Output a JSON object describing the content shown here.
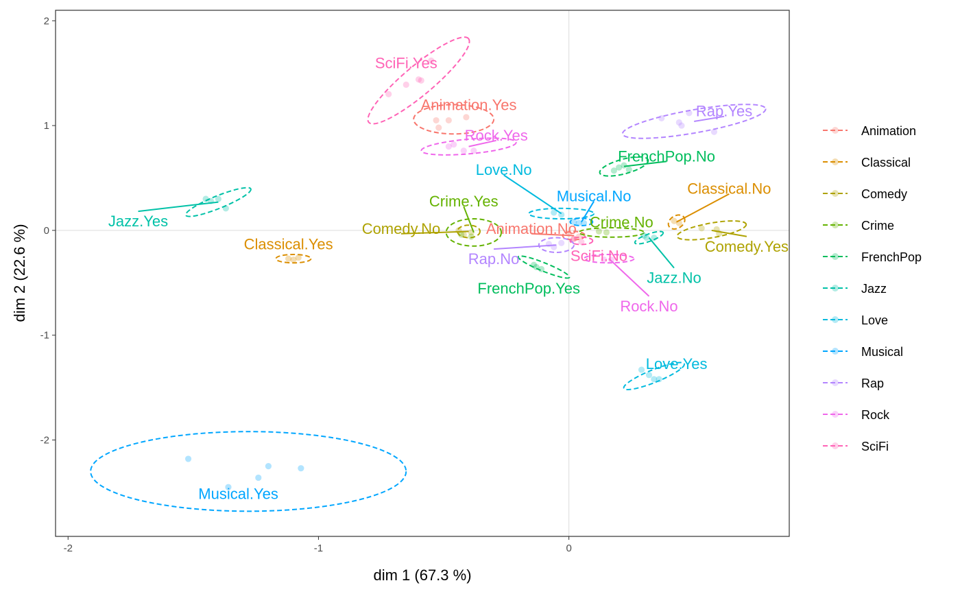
{
  "chart_data": {
    "type": "scatter",
    "xlabel": "dim 1 (67.3 %)",
    "ylabel": "dim 2 (22.6 %)",
    "xlim": [
      -2.05,
      0.88
    ],
    "ylim": [
      -2.92,
      2.1
    ],
    "x_ticks": [
      -2,
      -1,
      0
    ],
    "y_ticks": [
      2,
      1,
      0,
      -1,
      -2
    ],
    "x_tick_labels": [
      "-2",
      "-1",
      "0"
    ],
    "y_tick_labels": [
      "2",
      "1",
      "0",
      "-1",
      "-2"
    ],
    "grid": "reference lines at 0",
    "legend_position": "right",
    "series": [
      {
        "name": "Animation",
        "color": "#F8766D",
        "categories": [
          {
            "label": "Animation.Yes",
            "label_pos": [
              -0.4,
              1.2
            ],
            "points": [
              [
                -0.53,
                1.05
              ],
              [
                -0.52,
                0.98
              ],
              [
                -0.48,
                1.05
              ],
              [
                -0.41,
                1.08
              ]
            ],
            "ellipse": {
              "cx": -0.46,
              "cy": 1.06,
              "rx": 0.16,
              "ry": 0.14,
              "angle": 0
            }
          },
          {
            "label": "Animation.No",
            "label_pos": [
              -0.15,
              0.02
            ],
            "points": [
              [
                0.0,
                -0.03
              ],
              [
                0.02,
                -0.08
              ],
              [
                0.04,
                -0.06
              ]
            ],
            "ellipse": {
              "cx": 0.02,
              "cy": -0.05,
              "rx": 0.045,
              "ry": 0.04,
              "angle": 0
            }
          }
        ]
      },
      {
        "name": "Classical",
        "color": "#DB8E00",
        "categories": [
          {
            "label": "Classical.Yes",
            "label_pos": [
              -1.12,
              -0.13
            ],
            "points": [
              [
                -1.12,
                -0.27
              ],
              [
                -1.1,
                -0.28
              ],
              [
                -1.08,
                -0.26
              ]
            ],
            "ellipse": {
              "cx": -1.1,
              "cy": -0.27,
              "rx": 0.07,
              "ry": 0.04,
              "angle": 0
            }
          },
          {
            "label": "Classical.No",
            "label_pos": [
              0.64,
              0.4
            ],
            "points": [
              [
                0.42,
                0.09
              ],
              [
                0.44,
                0.07
              ]
            ],
            "ellipse": {
              "cx": 0.43,
              "cy": 0.08,
              "rx": 0.035,
              "ry": 0.06,
              "angle": -30
            }
          }
        ]
      },
      {
        "name": "Comedy",
        "color": "#AEA200",
        "categories": [
          {
            "label": "Comedy.No",
            "label_pos": [
              -0.67,
              0.02
            ],
            "points": [
              [
                -0.44,
                0.0
              ],
              [
                -0.42,
                -0.04
              ],
              [
                -0.39,
                -0.02
              ]
            ],
            "ellipse": {
              "cx": -0.4,
              "cy": -0.01,
              "rx": 0.045,
              "ry": 0.06,
              "angle": 0
            }
          },
          {
            "label": "Comedy.Yes",
            "label_pos": [
              0.71,
              -0.15
            ],
            "points": [
              [
                0.53,
                0.02
              ],
              [
                0.59,
                0.01
              ],
              [
                0.6,
                -0.03
              ]
            ],
            "ellipse": {
              "cx": 0.57,
              "cy": 0.0,
              "rx": 0.14,
              "ry": 0.07,
              "angle": -10
            }
          }
        ]
      },
      {
        "name": "Crime",
        "color": "#64B200",
        "categories": [
          {
            "label": "Crime.Yes",
            "label_pos": [
              -0.42,
              0.28
            ],
            "points": [
              [
                -0.43,
                -0.04
              ],
              [
                -0.39,
                -0.06
              ]
            ],
            "ellipse": {
              "cx": -0.38,
              "cy": -0.02,
              "rx": 0.11,
              "ry": 0.13,
              "angle": 0
            }
          },
          {
            "label": "Crime.No",
            "label_pos": [
              0.21,
              0.08
            ],
            "points": [
              [
                0.12,
                -0.01
              ],
              [
                0.15,
                -0.02
              ]
            ],
            "ellipse": {
              "cx": 0.17,
              "cy": -0.02,
              "rx": 0.13,
              "ry": 0.045,
              "angle": 0
            }
          }
        ]
      },
      {
        "name": "FrenchPop",
        "color": "#00BD5C",
        "categories": [
          {
            "label": "FrenchPop.Yes",
            "label_pos": [
              -0.16,
              -0.55
            ],
            "points": [
              [
                -0.14,
                -0.33
              ],
              [
                -0.13,
                -0.35
              ],
              [
                -0.11,
                -0.37
              ]
            ],
            "ellipse": {
              "cx": -0.1,
              "cy": -0.35,
              "rx": 0.11,
              "ry": 0.04,
              "angle": 22
            }
          },
          {
            "label": "FrenchPop.No",
            "label_pos": [
              0.39,
              0.71
            ],
            "points": [
              [
                0.18,
                0.57
              ],
              [
                0.2,
                0.6
              ],
              [
                0.22,
                0.62
              ],
              [
                0.24,
                0.58
              ]
            ],
            "ellipse": {
              "cx": 0.22,
              "cy": 0.61,
              "rx": 0.1,
              "ry": 0.07,
              "angle": -15
            }
          }
        ]
      },
      {
        "name": "Jazz",
        "color": "#00C1A7",
        "categories": [
          {
            "label": "Jazz.Yes",
            "label_pos": [
              -1.72,
              0.09
            ],
            "points": [
              [
                -1.45,
                0.3
              ],
              [
                -1.43,
                0.28
              ],
              [
                -1.4,
                0.3
              ],
              [
                -1.37,
                0.21
              ]
            ],
            "ellipse": {
              "cx": -1.4,
              "cy": 0.27,
              "rx": 0.14,
              "ry": 0.06,
              "angle": -22
            }
          },
          {
            "label": "Jazz.No",
            "label_pos": [
              0.42,
              -0.45
            ],
            "points": [
              [
                0.3,
                -0.05
              ],
              [
                0.31,
                -0.07
              ],
              [
                0.34,
                -0.07
              ]
            ],
            "ellipse": {
              "cx": 0.32,
              "cy": -0.07,
              "rx": 0.06,
              "ry": 0.035,
              "angle": -20
            }
          }
        ]
      },
      {
        "name": "Love",
        "color": "#00BADE",
        "categories": [
          {
            "label": "Love.Yes",
            "label_pos": [
              0.43,
              -1.27
            ],
            "points": [
              [
                0.29,
                -1.33
              ],
              [
                0.32,
                -1.38
              ],
              [
                0.34,
                -1.42
              ],
              [
                0.36,
                -1.42
              ]
            ],
            "ellipse": {
              "cx": 0.34,
              "cy": -1.39,
              "rx": 0.13,
              "ry": 0.06,
              "angle": -22
            }
          },
          {
            "label": "Love.No",
            "label_pos": [
              -0.26,
              0.58
            ],
            "points": [
              [
                -0.06,
                0.17
              ],
              [
                -0.03,
                0.15
              ]
            ],
            "ellipse": {
              "cx": -0.03,
              "cy": 0.16,
              "rx": 0.13,
              "ry": 0.05,
              "angle": 0
            }
          }
        ]
      },
      {
        "name": "Musical",
        "color": "#00A6FF",
        "categories": [
          {
            "label": "Musical.Yes",
            "label_pos": [
              -1.32,
              -2.51
            ],
            "points": [
              [
                -1.52,
                -2.18
              ],
              [
                -1.36,
                -2.45
              ],
              [
                -1.24,
                -2.36
              ],
              [
                -1.2,
                -2.25
              ],
              [
                -1.07,
                -2.27
              ]
            ],
            "ellipse": {
              "cx": -1.28,
              "cy": -2.3,
              "rx": 0.63,
              "ry": 0.38,
              "angle": 0
            }
          },
          {
            "label": "Musical.No",
            "label_pos": [
              0.1,
              0.33
            ],
            "points": [
              [
                0.02,
                0.08
              ],
              [
                0.04,
                0.07
              ],
              [
                0.06,
                0.07
              ]
            ],
            "ellipse": {
              "cx": 0.05,
              "cy": 0.08,
              "rx": 0.045,
              "ry": 0.035,
              "angle": 0
            }
          }
        ]
      },
      {
        "name": "Rap",
        "color": "#B385FF",
        "categories": [
          {
            "label": "Rap.Yes",
            "label_pos": [
              0.62,
              1.14
            ],
            "points": [
              [
                0.37,
                1.07
              ],
              [
                0.44,
                1.03
              ],
              [
                0.45,
                1.0
              ],
              [
                0.48,
                1.12
              ],
              [
                0.58,
                0.94
              ]
            ],
            "ellipse": {
              "cx": 0.5,
              "cy": 1.04,
              "rx": 0.29,
              "ry": 0.11,
              "angle": -10
            }
          },
          {
            "label": "Rap.No",
            "label_pos": [
              -0.3,
              -0.27
            ],
            "points": [
              [
                -0.08,
                -0.13
              ],
              [
                -0.06,
                -0.16
              ],
              [
                -0.03,
                -0.12
              ]
            ],
            "ellipse": {
              "cx": -0.05,
              "cy": -0.14,
              "rx": 0.07,
              "ry": 0.07,
              "angle": 0
            }
          }
        ]
      },
      {
        "name": "Rock",
        "color": "#EF67EB",
        "categories": [
          {
            "label": "Rock.Yes",
            "label_pos": [
              -0.29,
              0.91
            ],
            "points": [
              [
                -0.48,
                0.8
              ],
              [
                -0.46,
                0.82
              ],
              [
                -0.42,
                0.76
              ],
              [
                -0.38,
                0.76
              ]
            ],
            "ellipse": {
              "cx": -0.4,
              "cy": 0.8,
              "rx": 0.19,
              "ry": 0.07,
              "angle": -5
            }
          },
          {
            "label": "Rock.No",
            "label_pos": [
              0.32,
              -0.72
            ],
            "points": [
              [
                0.14,
                -0.28
              ],
              [
                0.17,
                -0.28
              ]
            ],
            "ellipse": {
              "cx": 0.16,
              "cy": -0.27,
              "rx": 0.1,
              "ry": 0.04,
              "angle": 0
            }
          }
        ]
      },
      {
        "name": "SciFi",
        "color": "#FF63B6",
        "categories": [
          {
            "label": "SciFi.Yes",
            "label_pos": [
              -0.65,
              1.6
            ],
            "points": [
              [
                -0.72,
                1.3
              ],
              [
                -0.65,
                1.39
              ],
              [
                -0.6,
                1.44
              ],
              [
                -0.59,
                1.43
              ],
              [
                -0.55,
                1.62
              ]
            ],
            "ellipse": {
              "cx": -0.6,
              "cy": 1.43,
              "rx": 0.26,
              "ry": 0.14,
              "angle": -40
            }
          },
          {
            "label": "SciFi.No",
            "label_pos": [
              0.12,
              -0.24
            ],
            "points": [
              [
                0.02,
                -0.08
              ],
              [
                0.05,
                -0.11
              ]
            ],
            "ellipse": {
              "cx": 0.05,
              "cy": -0.1,
              "rx": 0.045,
              "ry": 0.035,
              "angle": 0
            }
          }
        ]
      }
    ]
  }
}
